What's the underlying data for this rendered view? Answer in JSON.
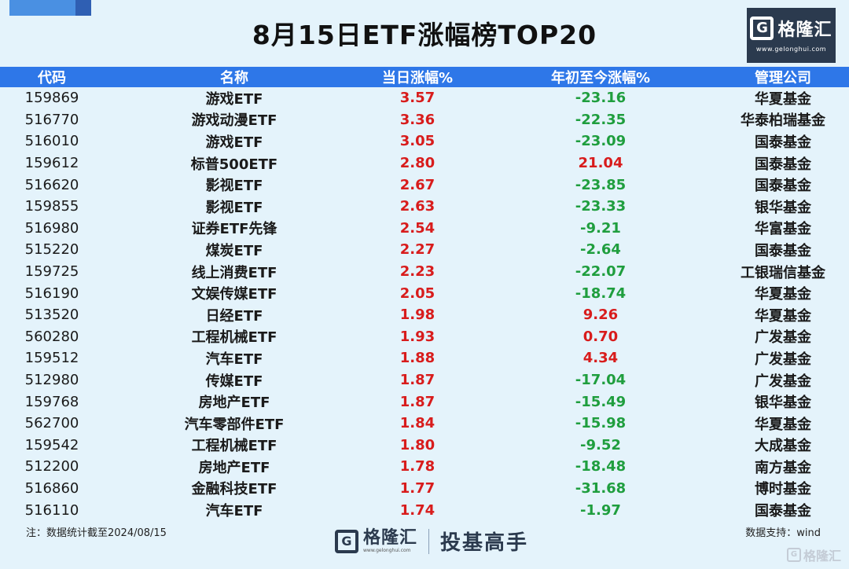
{
  "title": "8月15日ETF涨幅榜TOP20",
  "brand": {
    "mark": "G",
    "name": "格隆汇",
    "url": "www.gelonghui.com",
    "slogan": "投基高手"
  },
  "columns": {
    "code": "代码",
    "name": "名称",
    "day_change": "当日涨幅%",
    "ytd_change": "年初至今涨幅%",
    "manager": "管理公司"
  },
  "rows": [
    {
      "code": "159869",
      "name": "游戏ETF",
      "day": "3.57",
      "ytd": "-23.16",
      "manager": "华夏基金"
    },
    {
      "code": "516770",
      "name": "游戏动漫ETF",
      "day": "3.36",
      "ytd": "-22.35",
      "manager": "华泰柏瑞基金"
    },
    {
      "code": "516010",
      "name": "游戏ETF",
      "day": "3.05",
      "ytd": "-23.09",
      "manager": "国泰基金"
    },
    {
      "code": "159612",
      "name": "标普500ETF",
      "day": "2.80",
      "ytd": "21.04",
      "manager": "国泰基金"
    },
    {
      "code": "516620",
      "name": "影视ETF",
      "day": "2.67",
      "ytd": "-23.85",
      "manager": "国泰基金"
    },
    {
      "code": "159855",
      "name": "影视ETF",
      "day": "2.63",
      "ytd": "-23.33",
      "manager": "银华基金"
    },
    {
      "code": "516980",
      "name": "证券ETF先锋",
      "day": "2.54",
      "ytd": "-9.21",
      "manager": "华富基金"
    },
    {
      "code": "515220",
      "name": "煤炭ETF",
      "day": "2.27",
      "ytd": "-2.64",
      "manager": "国泰基金"
    },
    {
      "code": "159725",
      "name": "线上消费ETF",
      "day": "2.23",
      "ytd": "-22.07",
      "manager": "工银瑞信基金"
    },
    {
      "code": "516190",
      "name": "文娱传媒ETF",
      "day": "2.05",
      "ytd": "-18.74",
      "manager": "华夏基金"
    },
    {
      "code": "513520",
      "name": "日经ETF",
      "day": "1.98",
      "ytd": "9.26",
      "manager": "华夏基金"
    },
    {
      "code": "560280",
      "name": "工程机械ETF",
      "day": "1.93",
      "ytd": "0.70",
      "manager": "广发基金"
    },
    {
      "code": "159512",
      "name": "汽车ETF",
      "day": "1.88",
      "ytd": "4.34",
      "manager": "广发基金"
    },
    {
      "code": "512980",
      "name": "传媒ETF",
      "day": "1.87",
      "ytd": "-17.04",
      "manager": "广发基金"
    },
    {
      "code": "159768",
      "name": "房地产ETF",
      "day": "1.87",
      "ytd": "-15.49",
      "manager": "银华基金"
    },
    {
      "code": "562700",
      "name": "汽车零部件ETF",
      "day": "1.84",
      "ytd": "-15.98",
      "manager": "华夏基金"
    },
    {
      "code": "159542",
      "name": "工程机械ETF",
      "day": "1.80",
      "ytd": "-9.52",
      "manager": "大成基金"
    },
    {
      "code": "512200",
      "name": "房地产ETF",
      "day": "1.78",
      "ytd": "-18.48",
      "manager": "南方基金"
    },
    {
      "code": "516860",
      "name": "金融科技ETF",
      "day": "1.77",
      "ytd": "-31.68",
      "manager": "博时基金"
    },
    {
      "code": "516110",
      "name": "汽车ETF",
      "day": "1.74",
      "ytd": "-1.97",
      "manager": "国泰基金"
    }
  ],
  "footer": {
    "note": "注：数据统计截至2024/08/15",
    "source": "数据支持：wind"
  },
  "colors": {
    "header_bg": "#2e77e8",
    "positive": "#d81c1c",
    "negative": "#1f9e3e",
    "background": "#e4f3fb",
    "brand_dark": "#2b3a4e"
  }
}
